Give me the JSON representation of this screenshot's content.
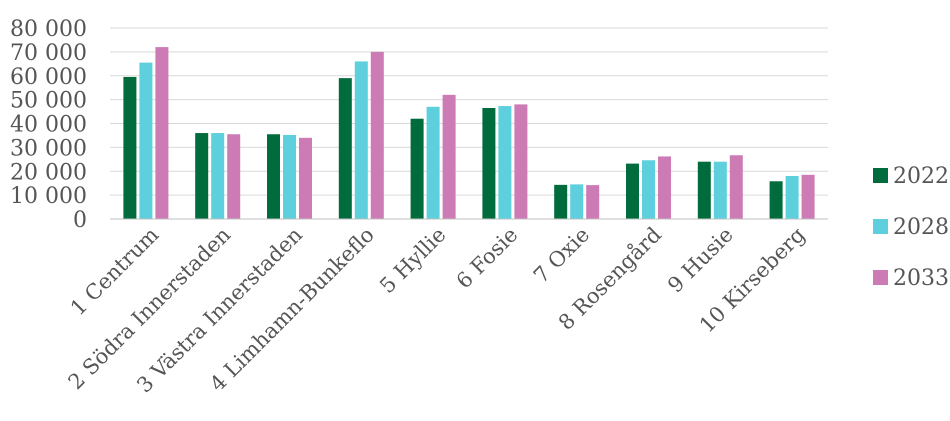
{
  "chart_data": {
    "type": "bar",
    "title": "",
    "xlabel": "",
    "ylabel": "",
    "ylim": [
      0,
      80000
    ],
    "y_ticks": [
      0,
      10000,
      20000,
      30000,
      40000,
      50000,
      60000,
      70000,
      80000
    ],
    "y_tick_labels": [
      "0",
      "10 000",
      "20 000",
      "30 000",
      "40 000",
      "50 000",
      "60 000",
      "70 000",
      "80 000"
    ],
    "grid": true,
    "legend_position": "right",
    "categories": [
      "1 Centrum",
      "2 Södra Innerstaden",
      "3 Västra Innerstaden",
      "4 Limhamn-Bunkeflo",
      "5 Hyllie",
      "6 Fosie",
      "7 Oxie",
      "8 Rosengård",
      "9 Husie",
      "10 Kirseberg"
    ],
    "series": [
      {
        "name": "2022",
        "color": "#006B3C",
        "values": [
          59500,
          36000,
          35500,
          59000,
          42000,
          46500,
          14300,
          23200,
          24000,
          15800
        ]
      },
      {
        "name": "2028",
        "color": "#5ECFDD",
        "values": [
          65500,
          36000,
          35200,
          66000,
          47000,
          47300,
          14500,
          24600,
          24000,
          18000
        ]
      },
      {
        "name": "2033",
        "color": "#CC7BB5",
        "values": [
          72000,
          35500,
          34000,
          70000,
          52000,
          48000,
          14200,
          26200,
          26700,
          18500
        ]
      }
    ]
  }
}
